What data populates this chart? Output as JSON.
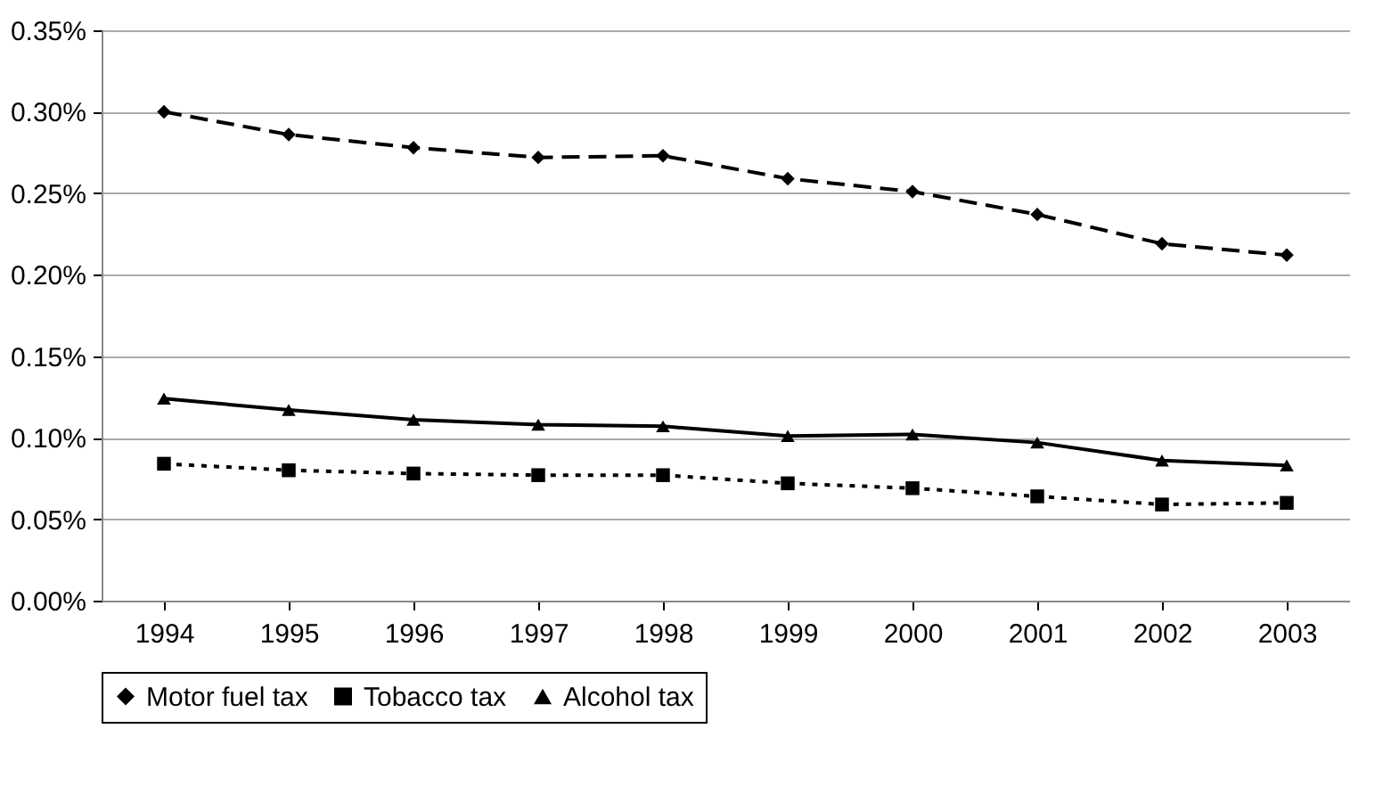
{
  "chart_data": {
    "type": "line",
    "categories": [
      "1994",
      "1995",
      "1996",
      "1997",
      "1998",
      "1999",
      "2000",
      "2001",
      "2002",
      "2003"
    ],
    "series": [
      {
        "name": "Motor fuel tax",
        "color": "#000000",
        "marker": "diamond",
        "line_style": "dashed",
        "values": [
          0.3,
          0.286,
          0.278,
          0.272,
          0.273,
          0.259,
          0.251,
          0.237,
          0.219,
          0.212
        ]
      },
      {
        "name": "Tobacco tax",
        "color": "#000000",
        "marker": "square",
        "line_style": "dotted",
        "values": [
          0.084,
          0.08,
          0.078,
          0.077,
          0.077,
          0.072,
          0.069,
          0.064,
          0.059,
          0.06
        ]
      },
      {
        "name": "Alcohol tax",
        "color": "#000000",
        "marker": "triangle",
        "line_style": "solid",
        "values": [
          0.124,
          0.117,
          0.111,
          0.108,
          0.107,
          0.101,
          0.102,
          0.097,
          0.086,
          0.083
        ]
      }
    ],
    "ylim": [
      0,
      0.35
    ],
    "yticks": [
      {
        "value": 0,
        "label": "0.00%"
      },
      {
        "value": 0.05,
        "label": "0.05%"
      },
      {
        "value": 0.1,
        "label": "0.10%"
      },
      {
        "value": 0.15,
        "label": "0.15%"
      },
      {
        "value": 0.2,
        "label": "0.20%"
      },
      {
        "value": 0.25,
        "label": "0.25%"
      },
      {
        "value": 0.3,
        "label": "0.30%"
      },
      {
        "value": 0.35,
        "label": "0.35%"
      }
    ],
    "grid": "y",
    "legend": "bottom"
  }
}
